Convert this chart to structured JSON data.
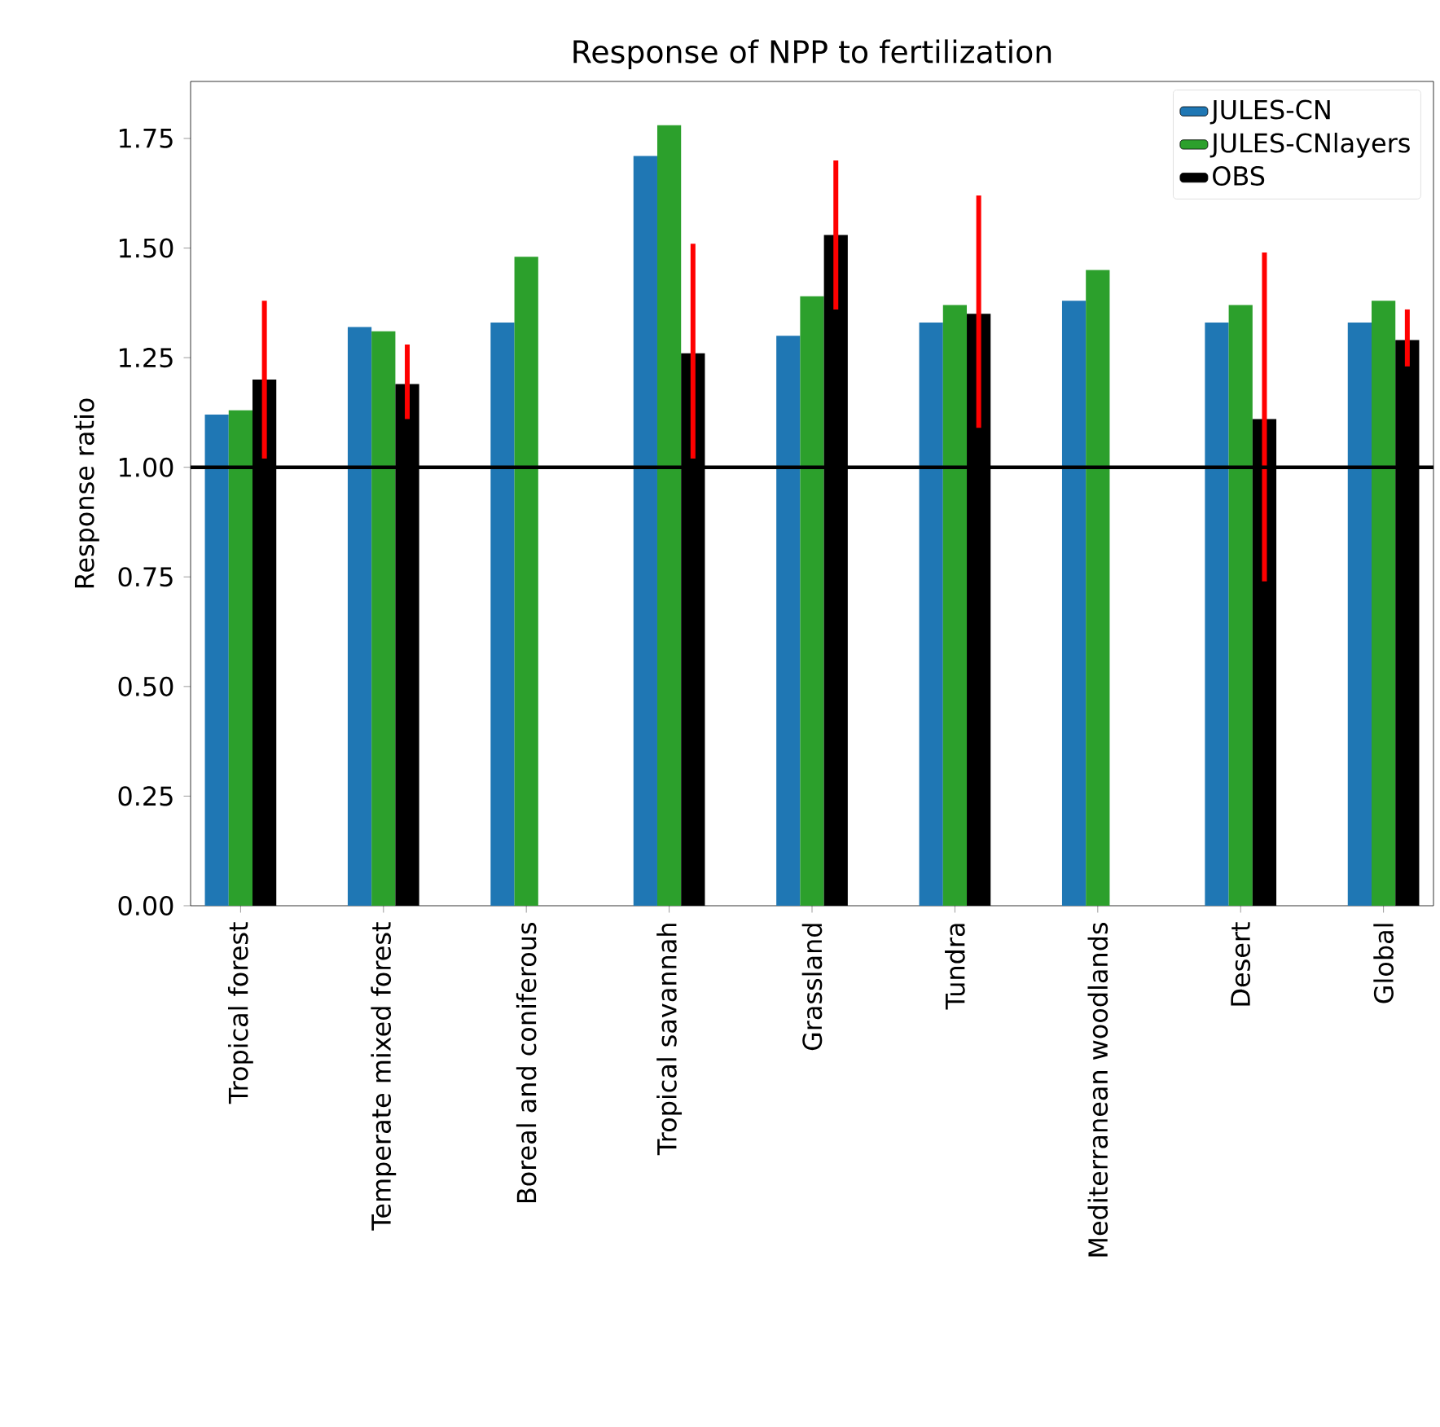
{
  "chart_data": {
    "type": "bar",
    "title": "Response of NPP to fertilization",
    "ylabel": "Response ratio",
    "categories": [
      "Tropical forest",
      "Temperate mixed forest",
      "Boreal and coniferous",
      "Tropical savannah",
      "Grassland",
      "Tundra",
      "Mediterranean woodlands",
      "Desert",
      "Global"
    ],
    "series": [
      {
        "name": "JULES-CN",
        "color": "#1f77b4",
        "values": [
          1.12,
          1.32,
          1.33,
          1.71,
          1.3,
          1.33,
          1.38,
          1.33,
          1.33
        ]
      },
      {
        "name": "JULES-CNlayers",
        "color": "#2ca02c",
        "values": [
          1.13,
          1.31,
          1.48,
          1.78,
          1.39,
          1.37,
          1.45,
          1.37,
          1.38
        ]
      },
      {
        "name": "OBS",
        "color": "#000000",
        "values": [
          1.2,
          1.19,
          null,
          1.26,
          1.53,
          1.35,
          null,
          1.11,
          1.29
        ],
        "errors": [
          [
            1.02,
            1.38
          ],
          [
            1.11,
            1.28
          ],
          null,
          [
            1.02,
            1.51
          ],
          [
            1.36,
            1.7
          ],
          [
            1.09,
            1.62
          ],
          null,
          [
            0.74,
            1.49
          ],
          [
            1.23,
            1.36
          ]
        ]
      }
    ],
    "ylim": [
      0,
      1.88
    ],
    "yticks": [
      {
        "value": 0,
        "label": "0.00"
      },
      {
        "value": 0.25,
        "label": "0.25"
      },
      {
        "value": 0.5,
        "label": "0.50"
      },
      {
        "value": 0.75,
        "label": "0.75"
      },
      {
        "value": 1,
        "label": "1.00"
      },
      {
        "value": 1.25,
        "label": "1.25"
      },
      {
        "value": 1.5,
        "label": "1.50"
      },
      {
        "value": 1.75,
        "label": "1.75"
      }
    ],
    "ref_lines": [
      {
        "axis": "y",
        "value": 1,
        "color": "#000000"
      }
    ],
    "legend": "top right",
    "grid": false
  }
}
